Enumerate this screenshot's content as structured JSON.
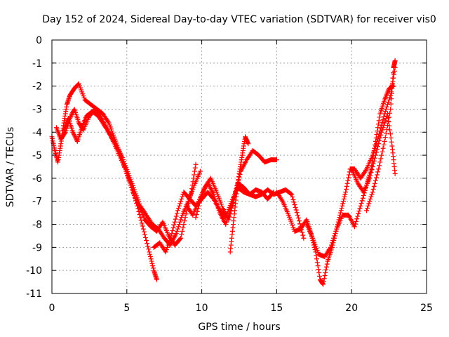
{
  "chart_data": {
    "type": "scatter",
    "title": "Day 152 of 2024, Sidereal Day-to-day VTEC variation (SDTVAR) for receiver vis0",
    "xlabel": "GPS time / hours",
    "ylabel": "SDTVAR / TECUs",
    "xlim": [
      0,
      25
    ],
    "ylim": [
      -11,
      0
    ],
    "xticks": [
      "0",
      "5",
      "10",
      "15",
      "20",
      "25"
    ],
    "yticks": [
      "0",
      "-1",
      "-2",
      "-3",
      "-4",
      "-5",
      "-6",
      "-7",
      "-8",
      "-9",
      "-10",
      "-11"
    ],
    "grid": true,
    "marker": "+",
    "color": "#ff0000",
    "series": [
      {
        "x": [
          0.0,
          0.2,
          0.4,
          0.6,
          0.8,
          1.0,
          1.2,
          1.5,
          1.8,
          2.2,
          2.6,
          3.0,
          3.4,
          3.8,
          4.2,
          4.6,
          5.0,
          5.4,
          5.8,
          6.2,
          6.6,
          7.0,
          7.4,
          7.8,
          8.2,
          8.6,
          9.0,
          9.3,
          9.6
        ],
        "y": [
          -4.2,
          -4.8,
          -5.3,
          -4.5,
          -3.6,
          -2.8,
          -2.4,
          -2.1,
          -1.9,
          -2.6,
          -2.8,
          -3.0,
          -3.2,
          -3.6,
          -4.3,
          -5.0,
          -5.8,
          -6.6,
          -7.2,
          -7.8,
          -8.1,
          -8.3,
          -7.9,
          -8.5,
          -8.9,
          -8.6,
          -7.4,
          -6.6,
          -5.4
        ]
      },
      {
        "x": [
          0.3,
          0.6,
          0.9,
          1.2,
          1.5,
          1.8,
          2.1,
          2.5,
          2.9,
          3.3,
          3.7,
          4.1,
          4.5,
          4.9,
          5.3,
          5.7,
          6.1,
          6.5,
          6.8,
          7.0
        ],
        "y": [
          -3.8,
          -4.3,
          -4.0,
          -3.4,
          -3.0,
          -3.6,
          -3.9,
          -3.3,
          -3.0,
          -3.4,
          -3.9,
          -4.4,
          -5.0,
          -5.6,
          -6.3,
          -7.2,
          -8.2,
          -9.2,
          -10.0,
          -10.4
        ]
      },
      {
        "x": [
          0.8,
          1.1,
          1.4,
          1.7,
          2.0,
          2.3,
          2.7,
          3.1,
          3.5,
          3.9,
          4.3,
          4.7,
          5.1,
          5.5,
          5.9,
          6.3,
          6.7,
          7.1,
          7.5,
          7.9,
          8.3,
          8.7,
          9.1,
          9.5,
          9.9
        ],
        "y": [
          -3.9,
          -3.4,
          -4.0,
          -4.4,
          -3.8,
          -3.3,
          -3.1,
          -3.3,
          -3.7,
          -4.1,
          -4.6,
          -5.1,
          -5.8,
          -6.5,
          -7.2,
          -7.6,
          -8.0,
          -8.2,
          -8.6,
          -8.9,
          -8.4,
          -7.6,
          -7.0,
          -6.3,
          -5.7
        ]
      },
      {
        "x": [
          6.8,
          7.2,
          7.6,
          8.0,
          8.4,
          8.8,
          9.2,
          9.6,
          10.0,
          10.4,
          10.8,
          11.2,
          11.6,
          12.0,
          12.4,
          12.8,
          13.2,
          13.6,
          14.0,
          14.4,
          14.8,
          15.2,
          15.6,
          16.0,
          16.4,
          16.8
        ],
        "y": [
          -9.0,
          -8.8,
          -9.2,
          -8.4,
          -7.4,
          -6.6,
          -6.9,
          -7.2,
          -6.9,
          -6.6,
          -6.9,
          -7.4,
          -7.7,
          -7.0,
          -6.4,
          -6.6,
          -6.7,
          -6.8,
          -6.7,
          -6.5,
          -6.7,
          -6.6,
          -6.5,
          -6.7,
          -7.6,
          -8.6
        ]
      },
      {
        "x": [
          9.0,
          9.4,
          9.8,
          10.2,
          10.6,
          11.0,
          11.4,
          11.8,
          12.2,
          12.6,
          13.0,
          13.4,
          13.8,
          14.2,
          14.6,
          15.0
        ],
        "y": [
          -7.2,
          -7.6,
          -7.0,
          -6.4,
          -6.0,
          -6.6,
          -7.3,
          -7.8,
          -6.8,
          -5.7,
          -5.2,
          -4.8,
          -5.0,
          -5.3,
          -5.2,
          -5.2
        ]
      },
      {
        "x": [
          9.6,
          10.0,
          10.4,
          10.8,
          11.2,
          11.6,
          12.0,
          12.4,
          12.8,
          13.2,
          13.6,
          14.0,
          14.4,
          14.8
        ],
        "y": [
          -7.7,
          -6.7,
          -6.2,
          -6.7,
          -7.5,
          -8.0,
          -7.2,
          -6.2,
          -6.4,
          -6.7,
          -6.5,
          -6.6,
          -6.9,
          -6.6
        ]
      },
      {
        "x": [
          11.9,
          12.1,
          12.3,
          12.5,
          12.7,
          12.9,
          13.1
        ],
        "y": [
          -9.2,
          -8.0,
          -6.8,
          -5.8,
          -5.0,
          -4.2,
          -4.5
        ]
      },
      {
        "x": [
          15.0,
          15.4,
          15.8,
          16.2,
          16.6,
          17.0,
          17.3,
          17.6,
          17.9,
          18.1,
          18.4,
          18.7,
          19.0,
          19.3,
          19.6,
          19.9,
          20.2,
          20.6,
          21.0,
          21.4,
          21.8,
          22.2,
          22.6,
          22.9
        ],
        "y": [
          -6.6,
          -7.0,
          -7.6,
          -8.3,
          -8.2,
          -7.8,
          -8.4,
          -9.2,
          -10.4,
          -10.6,
          -9.6,
          -9.0,
          -8.2,
          -7.4,
          -6.6,
          -5.6,
          -5.6,
          -6.0,
          -5.6,
          -5.0,
          -4.2,
          -3.2,
          -2.4,
          -1.2
        ]
      },
      {
        "x": [
          17.0,
          17.4,
          17.8,
          18.2,
          18.6,
          19.0,
          19.4,
          19.8,
          20.2,
          20.6,
          21.0,
          21.3,
          21.6,
          21.9,
          22.2,
          22.5,
          22.8
        ],
        "y": [
          -8.0,
          -8.6,
          -9.3,
          -9.4,
          -9.0,
          -8.2,
          -7.6,
          -7.6,
          -8.1,
          -7.2,
          -6.3,
          -5.6,
          -4.4,
          -3.2,
          -2.6,
          -2.1,
          -2.0
        ]
      },
      {
        "x": [
          20.0,
          20.4,
          20.8,
          21.2,
          21.6,
          22.0,
          22.4,
          22.7,
          22.9
        ],
        "y": [
          -5.6,
          -6.2,
          -6.6,
          -6.0,
          -5.0,
          -4.0,
          -3.2,
          -4.6,
          -5.8
        ]
      },
      {
        "x": [
          21.0,
          21.4,
          21.8,
          22.2,
          22.6,
          22.8,
          22.9
        ],
        "y": [
          -7.4,
          -6.6,
          -5.6,
          -4.4,
          -3.0,
          -1.2,
          -0.9
        ]
      }
    ]
  }
}
